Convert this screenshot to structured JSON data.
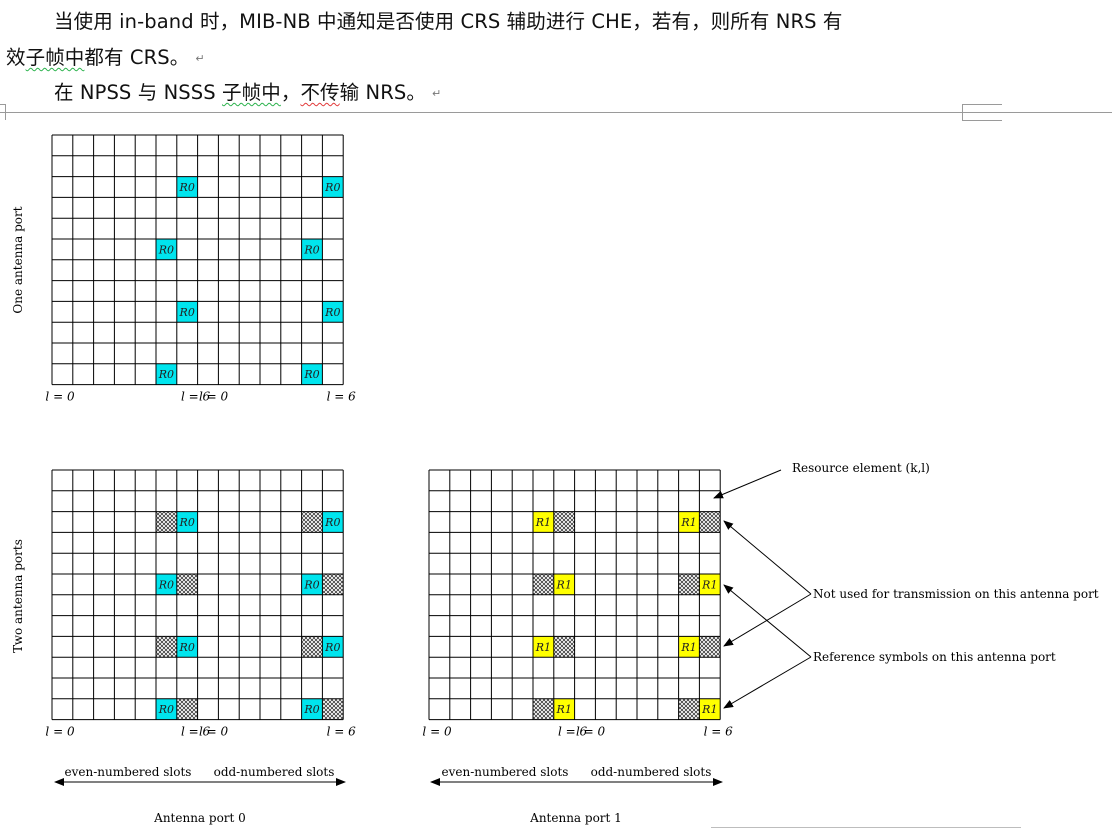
{
  "document": {
    "line1": "当使用 in-band 时，MIB-NB 中通知是否使用 CRS 辅助进行 CHE，若有，则所有 NRS 有",
    "line2_plain": "效",
    "line2_squiggle": "子帧中",
    "line2_rest": "都有 CRS。",
    "line3_a": "在 NPSS 与 NSSS ",
    "line3_squiggle_green": "子帧中",
    "line3_b": "，",
    "line3_squiggle_red": "不传",
    "line3_c": "输 NRS。",
    "para_mark": "↵"
  },
  "figure": {
    "row_label_one": "One antenna port",
    "row_label_two": "Two antenna ports",
    "l0": "l = 0",
    "l6": "l = 6",
    "ref_symbol_port0": "R0",
    "ref_symbol_port1": "R1",
    "even_slots": "even-numbered slots",
    "odd_slots": "odd-numbered slots",
    "caption_port0": "Antenna port 0",
    "caption_port1": "Antenna port 1",
    "callout_resource_element": "Resource element (k,l)",
    "callout_not_used": "Not used for transmission on this antenna port",
    "callout_reference": "Reference symbols on this antenna port",
    "colors": {
      "port0": "#00e5ee",
      "port1": "#ffff00"
    }
  }
}
